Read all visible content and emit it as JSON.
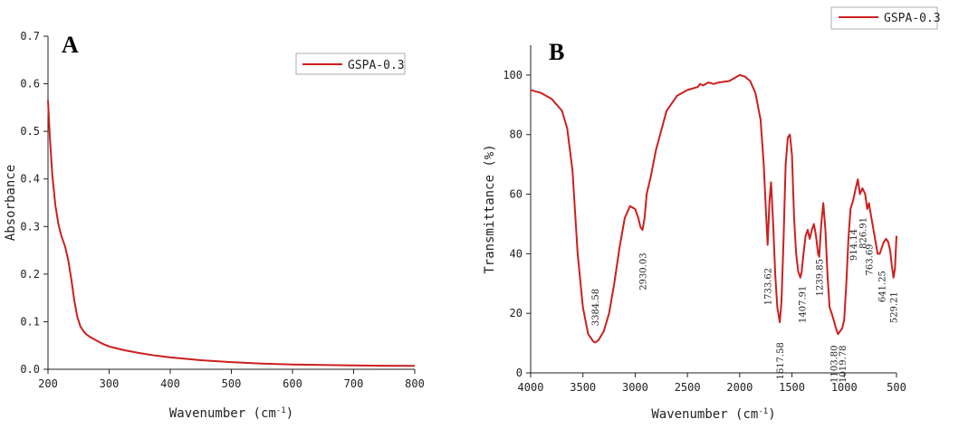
{
  "chart_data": [
    {
      "panel_label": "A",
      "type": "line",
      "title": "",
      "xlabel": "Wavenumber (cm",
      "xlabel_sup": "-1",
      "xlabel_close": ")",
      "ylabel": "Absorbance",
      "xlim": [
        200,
        800
      ],
      "ylim": [
        0.0,
        0.7
      ],
      "xticks": [
        "200",
        "300",
        "400",
        "500",
        "600",
        "700",
        "800"
      ],
      "yticks": [
        "0.0",
        "0.1",
        "0.2",
        "0.3",
        "0.4",
        "0.5",
        "0.6",
        "0.7"
      ],
      "grid": false,
      "legend_position": "top-right",
      "series": [
        {
          "name": "GSPA-0.3",
          "color": "#cc1f1f",
          "x": [
            200,
            203,
            207,
            212,
            217,
            222,
            228,
            233,
            238,
            243,
            248,
            253,
            258,
            263,
            270,
            280,
            290,
            300,
            325,
            350,
            375,
            400,
            450,
            500,
            550,
            600,
            650,
            700,
            750,
            800
          ],
          "y": [
            0.565,
            0.49,
            0.41,
            0.345,
            0.305,
            0.28,
            0.258,
            0.23,
            0.19,
            0.145,
            0.11,
            0.09,
            0.08,
            0.073,
            0.067,
            0.06,
            0.053,
            0.048,
            0.04,
            0.034,
            0.029,
            0.025,
            0.019,
            0.015,
            0.012,
            0.01,
            0.009,
            0.008,
            0.0075,
            0.007
          ]
        }
      ]
    },
    {
      "panel_label": "B",
      "type": "line",
      "title": "",
      "xlabel": "Wavenumber (cm",
      "xlabel_sup": "-1",
      "xlabel_close": ")",
      "ylabel": "Transmittance (%)",
      "xlim": [
        4000,
        500
      ],
      "ylim": [
        0,
        110
      ],
      "xticks": [
        "4000",
        "3500",
        "3000",
        "2500",
        "2000",
        "1500",
        "1000",
        "500"
      ],
      "yticks": [
        "0",
        "20",
        "40",
        "60",
        "80",
        "100"
      ],
      "grid": false,
      "legend_position": "top-right-outside",
      "series": [
        {
          "name": "GSPA-0.3",
          "color": "#cc1f1f",
          "x": [
            4000,
            3900,
            3800,
            3700,
            3650,
            3600,
            3550,
            3500,
            3450,
            3400,
            3384,
            3350,
            3300,
            3250,
            3200,
            3150,
            3100,
            3050,
            3000,
            2970,
            2950,
            2930,
            2910,
            2890,
            2850,
            2800,
            2700,
            2600,
            2500,
            2400,
            2380,
            2350,
            2300,
            2250,
            2200,
            2100,
            2000,
            1950,
            1900,
            1850,
            1800,
            1770,
            1750,
            1733,
            1715,
            1700,
            1680,
            1660,
            1640,
            1617,
            1600,
            1580,
            1560,
            1540,
            1520,
            1500,
            1480,
            1460,
            1440,
            1420,
            1407,
            1390,
            1370,
            1350,
            1330,
            1310,
            1290,
            1270,
            1250,
            1239,
            1220,
            1200,
            1180,
            1160,
            1140,
            1120,
            1103,
            1080,
            1060,
            1040,
            1019,
            1000,
            980,
            960,
            940,
            914,
            890,
            870,
            850,
            826,
            800,
            780,
            763,
            740,
            720,
            700,
            680,
            660,
            641,
            620,
            600,
            580,
            560,
            545,
            529,
            515,
            500
          ],
          "y": [
            95,
            94,
            92,
            88,
            82,
            68,
            40,
            22,
            13,
            10.5,
            10.2,
            11,
            14,
            20,
            30,
            42,
            52,
            56,
            55,
            52,
            49,
            48,
            52,
            60,
            66,
            75,
            88,
            93,
            95,
            96,
            97,
            96.5,
            97.5,
            97,
            97.5,
            98,
            100,
            99.5,
            98,
            94,
            85,
            70,
            55,
            43,
            58,
            64,
            50,
            33,
            22,
            17,
            24,
            45,
            70,
            79,
            80,
            73,
            52,
            40,
            34,
            32,
            34,
            40,
            46,
            48,
            45,
            48,
            50,
            46,
            40,
            39,
            50,
            57,
            48,
            33,
            22,
            20,
            18,
            15,
            13,
            14,
            15,
            18,
            30,
            45,
            55,
            58,
            62,
            65,
            60,
            62,
            60,
            55,
            57,
            52,
            48,
            44,
            40,
            40,
            42,
            44,
            45,
            44,
            41,
            36,
            32,
            35,
            46
          ]
        }
      ],
      "annotations": [
        {
          "text": "3384.58",
          "x": 3384,
          "y": 22
        },
        {
          "text": "2930.03",
          "x": 2930,
          "y": 34
        },
        {
          "text": "1733.62",
          "x": 1733,
          "y": 29
        },
        {
          "text": "1617.58",
          "x": 1617,
          "y": 4
        },
        {
          "text": "1407.91",
          "x": 1407,
          "y": 23
        },
        {
          "text": "1239.85",
          "x": 1239,
          "y": 32
        },
        {
          "text": "1103.80",
          "x": 1103,
          "y": 3
        },
        {
          "text": "1019.78",
          "x": 1019,
          "y": 3
        },
        {
          "text": "914.14",
          "x": 914,
          "y": 43
        },
        {
          "text": "826.91",
          "x": 826,
          "y": 47
        },
        {
          "text": "763.69",
          "x": 763,
          "y": 38
        },
        {
          "text": "641.25",
          "x": 641,
          "y": 29
        },
        {
          "text": "529.21",
          "x": 529,
          "y": 22
        }
      ]
    }
  ]
}
